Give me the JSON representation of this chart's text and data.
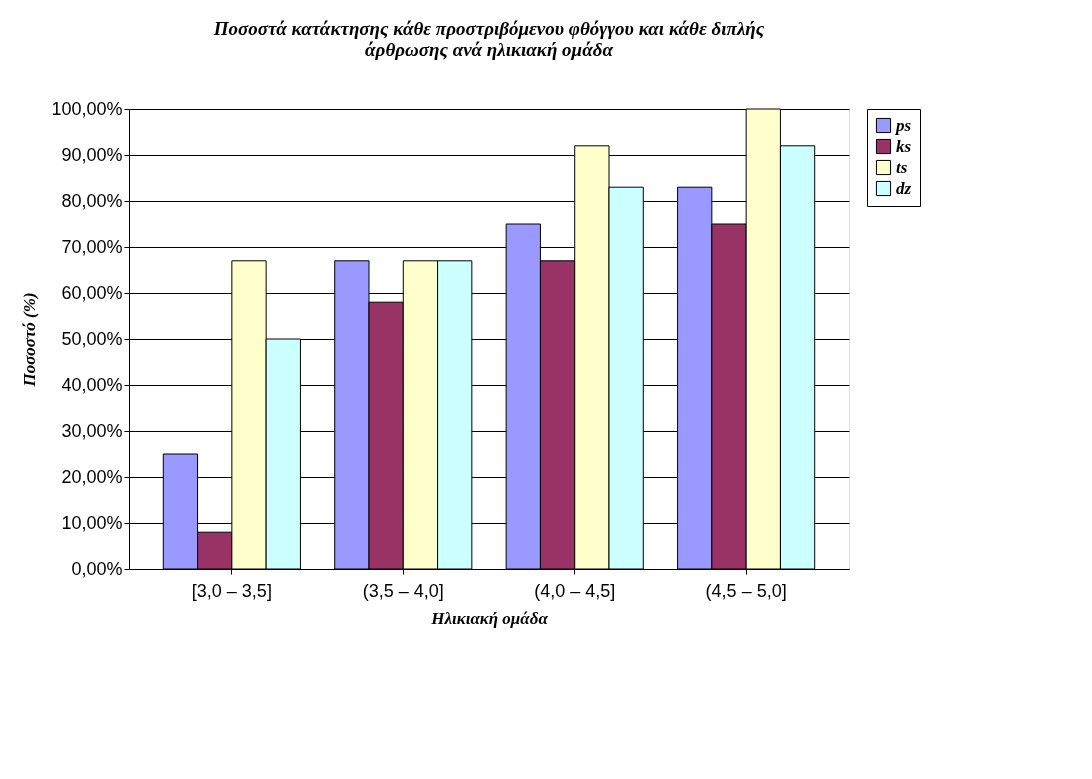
{
  "chart_data": {
    "type": "bar",
    "title": [
      "Ποσοστά κατάκτησης κάθε προστριβόμενου φθόγγου και κάθε διπλής",
      "άρθρωσης ανά ηλικιακή ομάδα"
    ],
    "xlabel": "Ηλικιακή ομάδα",
    "ylabel": "Ποσοστό (%)",
    "categories": [
      "[3,0 – 3,5]",
      "(3,5 – 4,0]",
      "(4,0 – 4,5]",
      "(4,5 – 5,0]"
    ],
    "series": [
      {
        "name": "ps",
        "color": "#9999ff",
        "values": [
          25,
          67,
          75,
          83
        ]
      },
      {
        "name": "ks",
        "color": "#993366",
        "values": [
          8,
          58,
          67,
          75
        ]
      },
      {
        "name": "ts",
        "color": "#ffffcc",
        "values": [
          67,
          67,
          92,
          100
        ]
      },
      {
        "name": "dz",
        "color": "#ccffff",
        "values": [
          50,
          67,
          83,
          92
        ]
      }
    ],
    "ylim": [
      0,
      100
    ],
    "yticks": [
      {
        "value": 0,
        "label": "0,00%"
      },
      {
        "value": 10,
        "label": "10,00%"
      },
      {
        "value": 20,
        "label": "20,00%"
      },
      {
        "value": 30,
        "label": "30,00%"
      },
      {
        "value": 40,
        "label": "40,00%"
      },
      {
        "value": 50,
        "label": "50,00%"
      },
      {
        "value": 60,
        "label": "60,00%"
      },
      {
        "value": 70,
        "label": "70,00%"
      },
      {
        "value": 80,
        "label": "80,00%"
      },
      {
        "value": 90,
        "label": "90,00%"
      },
      {
        "value": 100,
        "label": "100,00%"
      }
    ],
    "grid": "y",
    "legend": "right"
  }
}
